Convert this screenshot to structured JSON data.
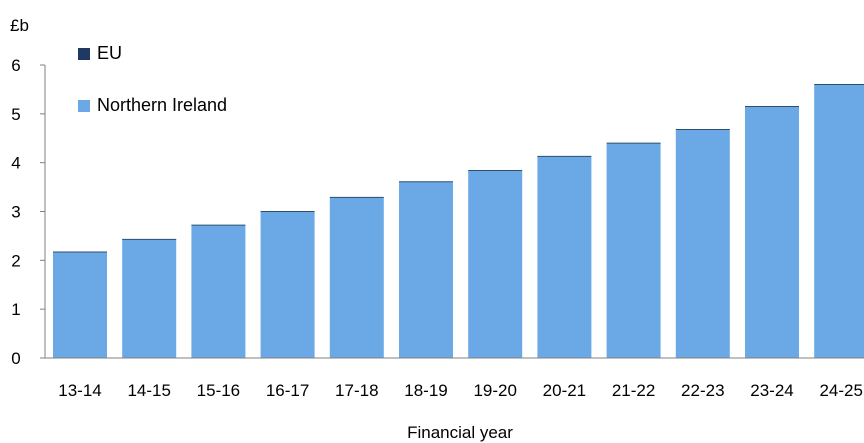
{
  "chart_data": {
    "type": "bar",
    "ylabel": "£b",
    "xlabel": "Financial year",
    "ylim": [
      0,
      6
    ],
    "yticks": [
      0,
      1,
      2,
      3,
      4,
      5,
      6
    ],
    "grid": false,
    "legend_position": "top-left",
    "categories": [
      "13-14",
      "14-15",
      "15-16",
      "16-17",
      "17-18",
      "18-19",
      "19-20",
      "20-21",
      "21-22",
      "22-23",
      "23-24",
      "24-25"
    ],
    "series": [
      {
        "name": "EU",
        "color": "#1f3864",
        "values": [
          0,
          0,
          0,
          0,
          0,
          0,
          0,
          0,
          0,
          0,
          0,
          0
        ]
      },
      {
        "name": "Northern Ireland",
        "color": "#6aa9e6",
        "values": [
          2.17,
          2.43,
          2.72,
          3.0,
          3.29,
          3.61,
          3.84,
          4.13,
          4.4,
          4.68,
          5.15,
          5.6
        ]
      }
    ]
  }
}
